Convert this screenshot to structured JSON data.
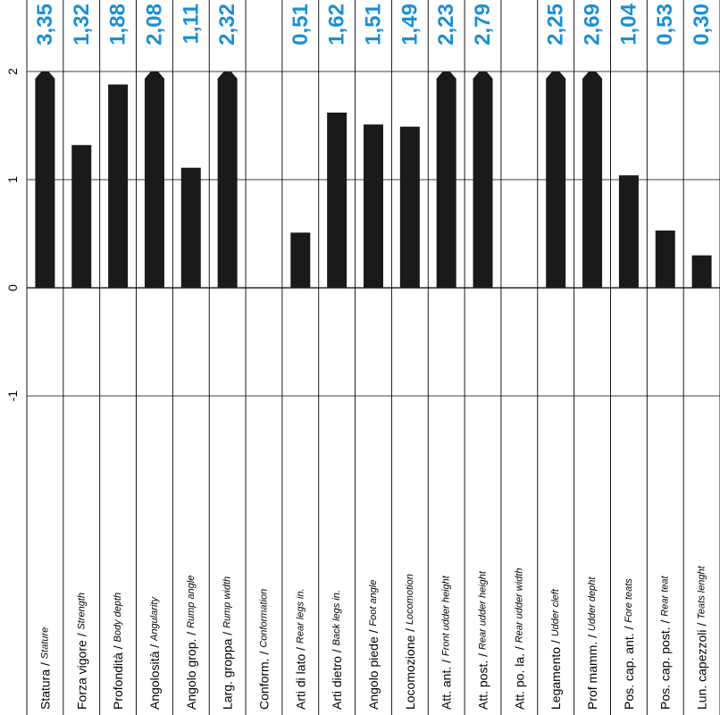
{
  "chart_data": {
    "type": "bar",
    "orientation": "vertical",
    "ylim": [
      -1.5,
      2.2
    ],
    "yticks": [
      {
        "value": 2,
        "label": "2"
      },
      {
        "value": 1,
        "label": "1"
      },
      {
        "value": 0,
        "label": "0"
      },
      {
        "value": -1,
        "label": "-1"
      }
    ],
    "grid": true,
    "categories": [
      {
        "it": "Statura",
        "sep": " / ",
        "en": "Stature"
      },
      {
        "it": "Forza vigore",
        "sep": " / ",
        "en": "Strength"
      },
      {
        "it": "Profondità",
        "sep": " / ",
        "en": "Body depth"
      },
      {
        "it": "Angolosità",
        "sep": " / ",
        "en": "Angularity"
      },
      {
        "it": "Angolo grop.",
        "sep": " / ",
        "en": "Rump angle"
      },
      {
        "it": "Larg. groppa",
        "sep": " / ",
        "en": "Rump width"
      },
      {
        "it": "Conform.",
        "sep": " / ",
        "en": "Conformation"
      },
      {
        "it": "Arti di lato",
        "sep": " / ",
        "en": "Rear legs in."
      },
      {
        "it": "Arti dietro",
        "sep": " / ",
        "en": "Back legs in."
      },
      {
        "it": "Angolo piede",
        "sep": " / ",
        "en": "Foot angle"
      },
      {
        "it": "Locomozione",
        "sep": " / ",
        "en": "Locomotion"
      },
      {
        "it": "Att. ant.",
        "sep": " / ",
        "en": "Front udder height"
      },
      {
        "it": "Att. post.",
        "sep": " / ",
        "en": "Rear udder height"
      },
      {
        "it": "Att. po. la.",
        "sep": " / ",
        "en": "Rear udder width"
      },
      {
        "it": "Legamento",
        "sep": " / ",
        "en": "Udder cleft"
      },
      {
        "it": "Prof mamm.",
        "sep": " / ",
        "en": "Udder depht"
      },
      {
        "it": "Pos. cap. ant.",
        "sep": " / ",
        "en": "Fore teats"
      },
      {
        "it": "Pos. cap. post.",
        "sep": " / ",
        "en": "Rear teat"
      },
      {
        "it": "Lun. capezzoli",
        "sep": " / ",
        "en": "Teats lenght"
      }
    ],
    "values": [
      3.35,
      1.32,
      1.88,
      2.08,
      1.11,
      2.32,
      null,
      0.51,
      1.62,
      1.51,
      1.49,
      2.23,
      2.79,
      null,
      2.25,
      2.69,
      1.04,
      0.53,
      0.3
    ],
    "value_labels": [
      "3,35",
      "1,32",
      "1,88",
      "2,08",
      "1,11",
      "2,32",
      "",
      "0,51",
      "1,62",
      "1,51",
      "1,49",
      "2,23",
      "2,79",
      "",
      "2,25",
      "2,69",
      "1,04",
      "0,53",
      "0,30"
    ],
    "clip_max": 2,
    "bar_color": "#1a1a1a",
    "label_color": "#1a8fd6"
  }
}
